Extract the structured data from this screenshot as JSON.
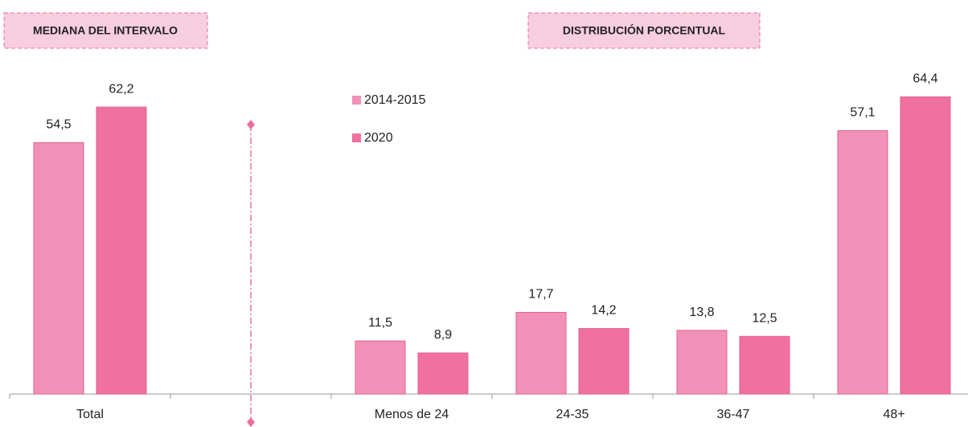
{
  "chart_data": {
    "type": "bar",
    "annotations": [
      "MEDIANA DEL INTERVALO",
      "DISTRIBUCIÓN PORCENTUAL"
    ],
    "categories": [
      "Total",
      null,
      "Menos de 24",
      "24-35",
      "36-47",
      "48+"
    ],
    "series": [
      {
        "name": "2014-2015",
        "color": "#f291b8",
        "values": [
          54.5,
          null,
          11.5,
          17.7,
          13.8,
          57.1
        ],
        "value_labels": [
          "54,5",
          null,
          "11,5",
          "17,7",
          "13,8",
          "57,1"
        ]
      },
      {
        "name": "2020",
        "color": "#f0709f",
        "values": [
          62.2,
          null,
          8.9,
          14.2,
          12.5,
          64.4
        ],
        "value_labels": [
          "62,2",
          null,
          "8,9",
          "14,2",
          "12,5",
          "64,4"
        ]
      }
    ],
    "ylim": [
      0,
      80
    ]
  }
}
